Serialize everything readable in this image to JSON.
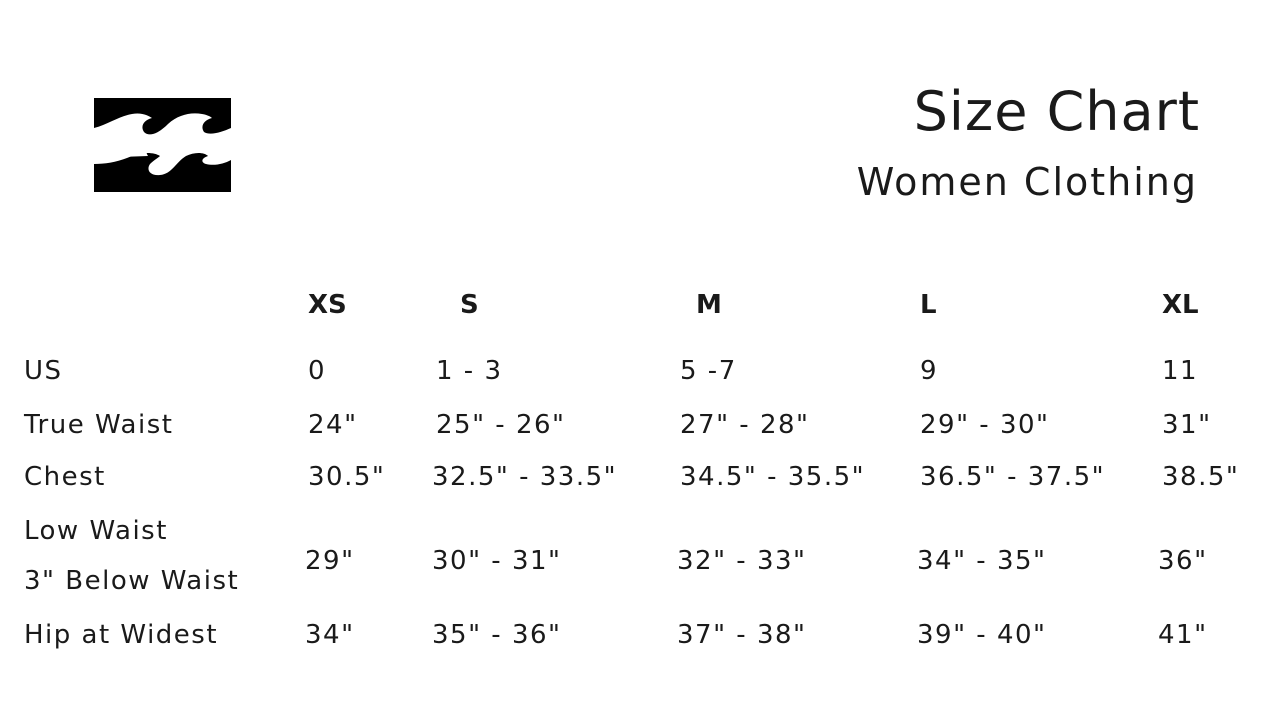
{
  "logo": {
    "name": "billabong-wave-logo"
  },
  "title": "Size Chart",
  "subtitle": "Women Clothing",
  "sizes": [
    "XS",
    "S",
    "M",
    "L",
    "XL"
  ],
  "rows": [
    {
      "label": "US",
      "values": [
        "0",
        "1 - 3",
        "5 -7",
        "9",
        "11"
      ]
    },
    {
      "label": "True Waist",
      "values": [
        "24\"",
        "25\" - 26\"",
        "27\" - 28\"",
        "29\" - 30\"",
        "31\""
      ]
    },
    {
      "label": "Chest",
      "values": [
        "30.5\"",
        "32.5\" - 33.5\"",
        "34.5\" - 35.5\"",
        "36.5\" - 37.5\"",
        "38.5\""
      ]
    },
    {
      "label": "Low Waist",
      "label2": "3\" Below Waist",
      "values": [
        "29\"",
        "30\" - 31\"",
        "32\" - 33\"",
        "34\" - 35\"",
        "36\""
      ]
    },
    {
      "label": "Hip at Widest",
      "values": [
        "34\"",
        "35\" - 36\"",
        "37\" - 38\"",
        "39\" - 40\"",
        "41\""
      ]
    }
  ]
}
